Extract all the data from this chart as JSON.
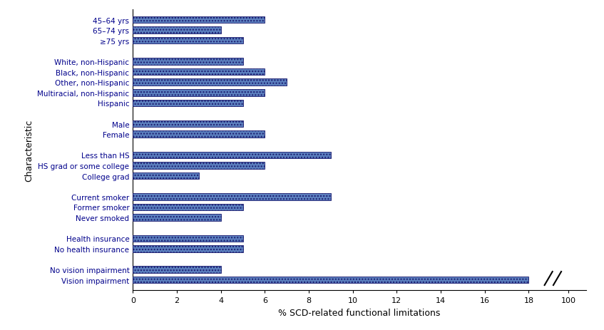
{
  "categories": [
    "45–64 yrs",
    "65–74 yrs",
    "≥75 yrs",
    "",
    "White, non-Hispanic",
    "Black, non-Hispanic",
    "Other, non-Hispanic",
    "Multiracial, non-Hispanic",
    "Hispanic",
    " ",
    "Male",
    "Female",
    "  ",
    "Less than HS",
    "HS grad or some college",
    "College grad",
    "   ",
    "Current smoker",
    "Former smoker",
    "Never smoked",
    "    ",
    "Health insurance",
    "No health insurance",
    "     ",
    "No vision impairment",
    "Vision impairment"
  ],
  "values": [
    6.0,
    4.0,
    5.0,
    0,
    5.0,
    6.0,
    7.0,
    6.0,
    5.0,
    0,
    5.0,
    6.0,
    0,
    9.0,
    6.0,
    3.0,
    0,
    9.0,
    5.0,
    4.0,
    0,
    5.0,
    5.0,
    0,
    4.0,
    18.0
  ],
  "bar_color": "#5b7fbe",
  "bar_edge_color": "#1a1a6e",
  "bar_hatch": "....",
  "xlabel": "% SCD-related functional limitations",
  "ylabel": "Characteristic",
  "figsize": [
    8.47,
    4.64
  ],
  "dpi": 100,
  "bar_height": 0.65,
  "label_color": "#00008B",
  "label_fontsize": 7.5,
  "xlabel_fontsize": 9,
  "ylabel_fontsize": 9,
  "xtick_fontsize": 8,
  "xtick_positions": [
    0,
    2,
    4,
    6,
    8,
    10,
    12,
    14,
    16,
    18,
    19.8
  ],
  "xtick_labels": [
    "0",
    "2",
    "4",
    "6",
    "8",
    "10",
    "12",
    "14",
    "16",
    "18",
    "100"
  ]
}
